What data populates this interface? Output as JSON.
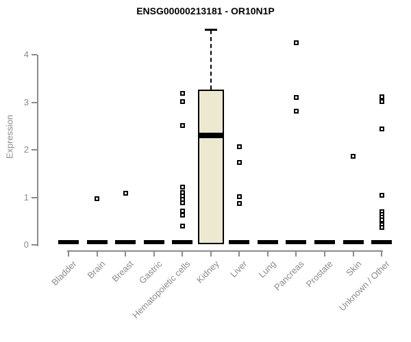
{
  "chart_data": {
    "type": "boxplot",
    "title": "ENSG00000213181 - OR10N1P",
    "ylabel": "Expression",
    "xlabel": "",
    "ylim": [
      0,
      4.6
    ],
    "yticks": [
      0,
      1,
      2,
      3,
      4
    ],
    "grid": false,
    "legend": "none",
    "categories": [
      "Bladder",
      "Brain",
      "Breast",
      "Gastric",
      "Hematopoietic cells",
      "Kidney",
      "Liver",
      "Lung",
      "Pancreas",
      "Prostate",
      "Skin",
      "Unknown / Other"
    ],
    "series": [
      {
        "category": "Bladder",
        "q1": 0,
        "median": 0,
        "q3": 0,
        "whisker_low": 0,
        "whisker_high": 0,
        "outliers": []
      },
      {
        "category": "Brain",
        "q1": 0,
        "median": 0,
        "q3": 0,
        "whisker_low": 0,
        "whisker_high": 0,
        "outliers": [
          0.97
        ]
      },
      {
        "category": "Breast",
        "q1": 0,
        "median": 0,
        "q3": 0,
        "whisker_low": 0,
        "whisker_high": 0,
        "outliers": [
          1.08
        ]
      },
      {
        "category": "Gastric",
        "q1": 0,
        "median": 0,
        "q3": 0,
        "whisker_low": 0,
        "whisker_high": 0,
        "outliers": []
      },
      {
        "category": "Hematopoietic cells",
        "q1": 0,
        "median": 0,
        "q3": 0,
        "whisker_low": 0,
        "whisker_high": 0,
        "outliers": [
          3.18,
          3.02,
          2.51,
          1.22,
          1.1,
          1.03,
          0.95,
          0.88,
          0.71,
          0.63,
          0.39
        ]
      },
      {
        "category": "Kidney",
        "q1": 0.02,
        "median": 2.3,
        "q3": 3.27,
        "whisker_low": 0.02,
        "whisker_high": 4.52,
        "outliers": []
      },
      {
        "category": "Liver",
        "q1": 0,
        "median": 0,
        "q3": 0,
        "whisker_low": 0,
        "whisker_high": 0,
        "outliers": [
          2.06,
          1.73,
          1.02,
          0.87
        ]
      },
      {
        "category": "Lung",
        "q1": 0,
        "median": 0,
        "q3": 0,
        "whisker_low": 0,
        "whisker_high": 0,
        "outliers": []
      },
      {
        "category": "Pancreas",
        "q1": 0,
        "median": 0,
        "q3": 0,
        "whisker_low": 0,
        "whisker_high": 0,
        "outliers": [
          4.25,
          3.1,
          2.82
        ]
      },
      {
        "category": "Prostate",
        "q1": 0,
        "median": 0,
        "q3": 0,
        "whisker_low": 0,
        "whisker_high": 0,
        "outliers": []
      },
      {
        "category": "Skin",
        "q1": 0,
        "median": 0,
        "q3": 0,
        "whisker_low": 0,
        "whisker_high": 0,
        "outliers": [
          1.87
        ]
      },
      {
        "category": "Unknown / Other",
        "q1": 0,
        "median": 0,
        "q3": 0,
        "whisker_low": 0,
        "whisker_high": 0,
        "outliers": [
          3.12,
          3.02,
          2.44,
          1.05,
          0.7,
          0.64,
          0.58,
          0.52,
          0.42,
          0.36
        ]
      }
    ],
    "colors": {
      "box_fill": "#ede8d0",
      "box_border": "#000000",
      "median": "#000000",
      "outlier_border": "#000000",
      "axis": "#8a8a8a",
      "tick_text": "#8a8a8a",
      "title_text": "#000000",
      "background": "#ffffff"
    }
  }
}
